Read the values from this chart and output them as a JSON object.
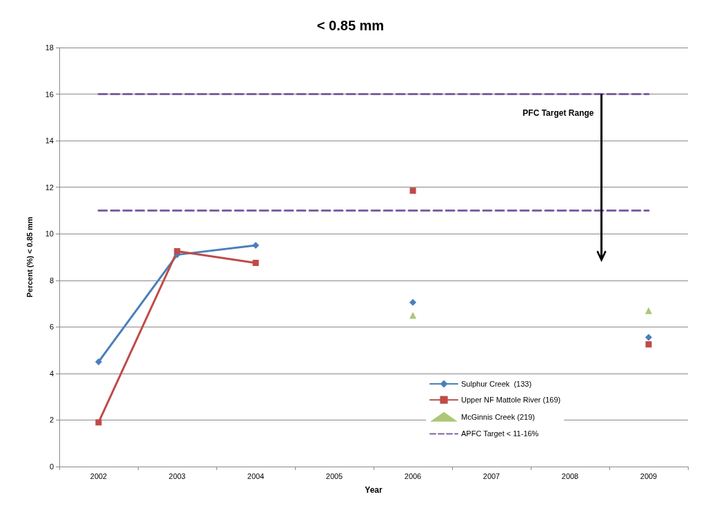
{
  "chart_data": {
    "type": "line",
    "title": "< 0.85 mm",
    "xlabel": "Year",
    "ylabel": "Percent (%) < 0.85 mm",
    "categories": [
      "2002",
      "2003",
      "2004",
      "2005",
      "2006",
      "2007",
      "2008",
      "2009"
    ],
    "series": [
      {
        "name": "Sulphur Creek  (133)",
        "color": "#4a7ebb",
        "marker": "diamond",
        "values": [
          4.5,
          9.1,
          9.5,
          null,
          7.05,
          null,
          null,
          5.55
        ]
      },
      {
        "name": "Upper NF Mattole River (169)",
        "color": "#be4b48",
        "marker": "square",
        "values": [
          1.9,
          9.25,
          8.75,
          null,
          11.85,
          null,
          null,
          5.25
        ]
      },
      {
        "name": "McGinnis Creek (219)",
        "type": "scatter",
        "color": "#98b954",
        "marker": "triangle",
        "values": [
          null,
          null,
          null,
          null,
          6.5,
          null,
          null,
          6.7
        ]
      },
      {
        "name": "APFC Target < 11-16%",
        "color": "#7d60a0",
        "marker": "none",
        "line_style": "dashed",
        "values": [
          16,
          16,
          16,
          16,
          16,
          16,
          16,
          16
        ]
      },
      {
        "color": "#7d60a0",
        "marker": "none",
        "line_style": "dashed",
        "values": [
          11,
          11,
          11,
          11,
          11,
          11,
          11,
          11
        ]
      }
    ],
    "annotations": [
      "PFC Target Range"
    ],
    "ylim": [
      0,
      18
    ],
    "yticks": [
      0,
      2,
      4,
      6,
      8,
      10,
      12,
      14,
      16,
      18
    ],
    "grid": "y",
    "legend": "bottom right"
  }
}
